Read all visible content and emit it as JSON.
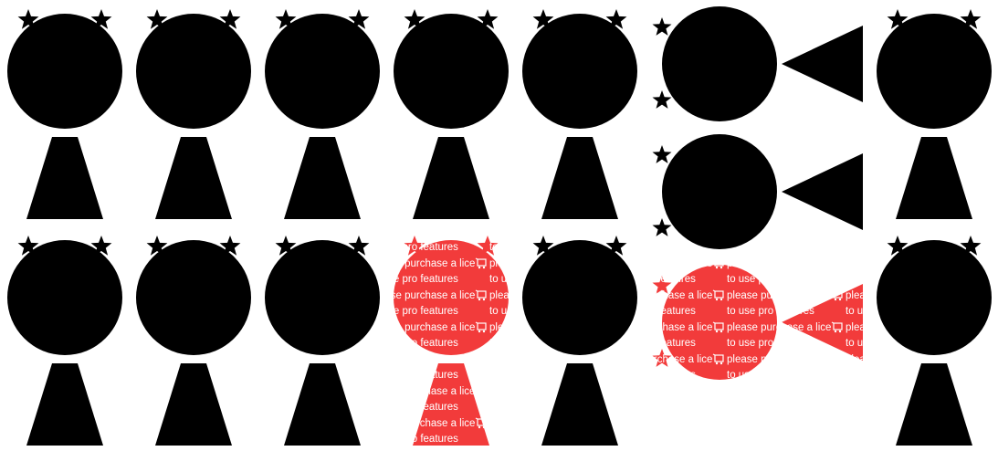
{
  "canvas": {
    "background": "#ffffff",
    "figure_color": "#000000",
    "watermark_color": "#f23b3b"
  },
  "figures": [
    {
      "shape": "figure-icon",
      "orientation": "upright",
      "style": "solid"
    },
    {
      "shape": "figure-icon",
      "orientation": "upright",
      "style": "solid"
    },
    {
      "shape": "figure-icon",
      "orientation": "upright",
      "style": "solid"
    },
    {
      "shape": "figure-icon",
      "orientation": "upright",
      "style": "solid"
    },
    {
      "shape": "figure-icon",
      "orientation": "upright",
      "style": "solid"
    },
    {
      "shape": "figure-icon",
      "orientation": "sideways",
      "style": "solid"
    },
    {
      "shape": "figure-icon",
      "orientation": "upright",
      "style": "solid"
    },
    {
      "shape": "figure-icon",
      "orientation": "sideways",
      "style": "solid"
    },
    {
      "shape": "figure-icon",
      "orientation": "upright",
      "style": "solid"
    },
    {
      "shape": "figure-icon",
      "orientation": "upright",
      "style": "solid"
    },
    {
      "shape": "figure-icon",
      "orientation": "upright",
      "style": "solid"
    },
    {
      "shape": "figure-icon",
      "orientation": "upright",
      "style": "watermarked"
    },
    {
      "shape": "figure-icon",
      "orientation": "upright",
      "style": "solid"
    },
    {
      "shape": "figure-icon",
      "orientation": "sideways",
      "style": "watermarked"
    },
    {
      "shape": "figure-icon",
      "orientation": "upright",
      "style": "solid"
    }
  ],
  "watermark": {
    "icon": "shopping-cart-icon",
    "lines": [
      "please purchase a license",
      "to use pro features"
    ]
  }
}
